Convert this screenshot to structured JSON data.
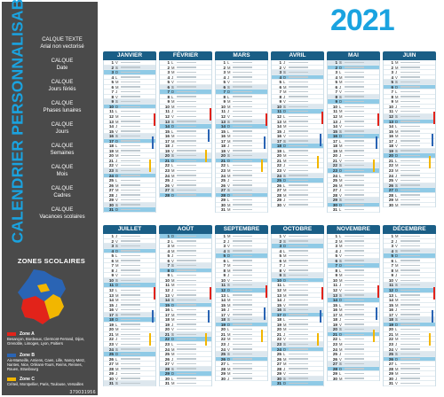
{
  "year": "2021",
  "sidebar": {
    "title": "CALENDRIER PERSONNALISABLE",
    "layers": [
      {
        "line1": "CALQUE TEXTE",
        "line2": "Arial non vectorisé"
      },
      {
        "line1": "CALQUE",
        "line2": "Date"
      },
      {
        "line1": "CALQUE",
        "line2": "Jours fériés"
      },
      {
        "line1": "CALQUE",
        "line2": "Phases lunaires"
      },
      {
        "line1": "CALQUE",
        "line2": "Jours"
      },
      {
        "line1": "CALQUE",
        "line2": "Semaines"
      },
      {
        "line1": "CALQUE",
        "line2": "Mois"
      },
      {
        "line1": "CALQUE",
        "line2": "Cadres"
      },
      {
        "line1": "CALQUE",
        "line2": "Vacances scolaires"
      }
    ],
    "zones_title": "ZONES SCOLAIRES",
    "zones": [
      {
        "name": "Zone A",
        "cities": "Besançon, Bordeaux, Clermont-Ferrand, Dijon, Grenoble, Limoges, Lyon, Poitiers",
        "color": "#e2231a"
      },
      {
        "name": "Zone B",
        "cities": "Aix-Marseille, Amiens, Caen, Lille, Nancy-Metz, Nantes, Nice, Orléans-Tours, Reims, Rennes, Rouen, Strasbourg",
        "color": "#2a64b4"
      },
      {
        "name": "Zone C",
        "cities": "Créteil, Montpellier, Paris, Toulouse, Versailles",
        "color": "#f2b600"
      }
    ]
  },
  "watermark": "379031956",
  "months": [
    {
      "name": "JANVIER",
      "days": 31,
      "start": 5
    },
    {
      "name": "FÉVRIER",
      "days": 28,
      "start": 1
    },
    {
      "name": "MARS",
      "days": 31,
      "start": 1
    },
    {
      "name": "AVRIL",
      "days": 30,
      "start": 4
    },
    {
      "name": "MAI",
      "days": 31,
      "start": 6
    },
    {
      "name": "JUIN",
      "days": 30,
      "start": 2
    },
    {
      "name": "JUILLET",
      "days": 31,
      "start": 4
    },
    {
      "name": "AOÛT",
      "days": 31,
      "start": 0
    },
    {
      "name": "SEPTEMBRE",
      "days": 30,
      "start": 3
    },
    {
      "name": "OCTOBRE",
      "days": 31,
      "start": 5
    },
    {
      "name": "NOVEMBRE",
      "days": 30,
      "start": 1
    },
    {
      "name": "DÉCEMBRE",
      "days": 31,
      "start": 3
    }
  ],
  "day_letters": [
    "D",
    "L",
    "M",
    "M",
    "J",
    "V",
    "S"
  ],
  "colors": {
    "header": "#1a5e86",
    "accent": "#1aa3e0",
    "sidebar": "#4a4a4a",
    "weekend": "#dde7ee",
    "holiday": "#8fcae6"
  }
}
